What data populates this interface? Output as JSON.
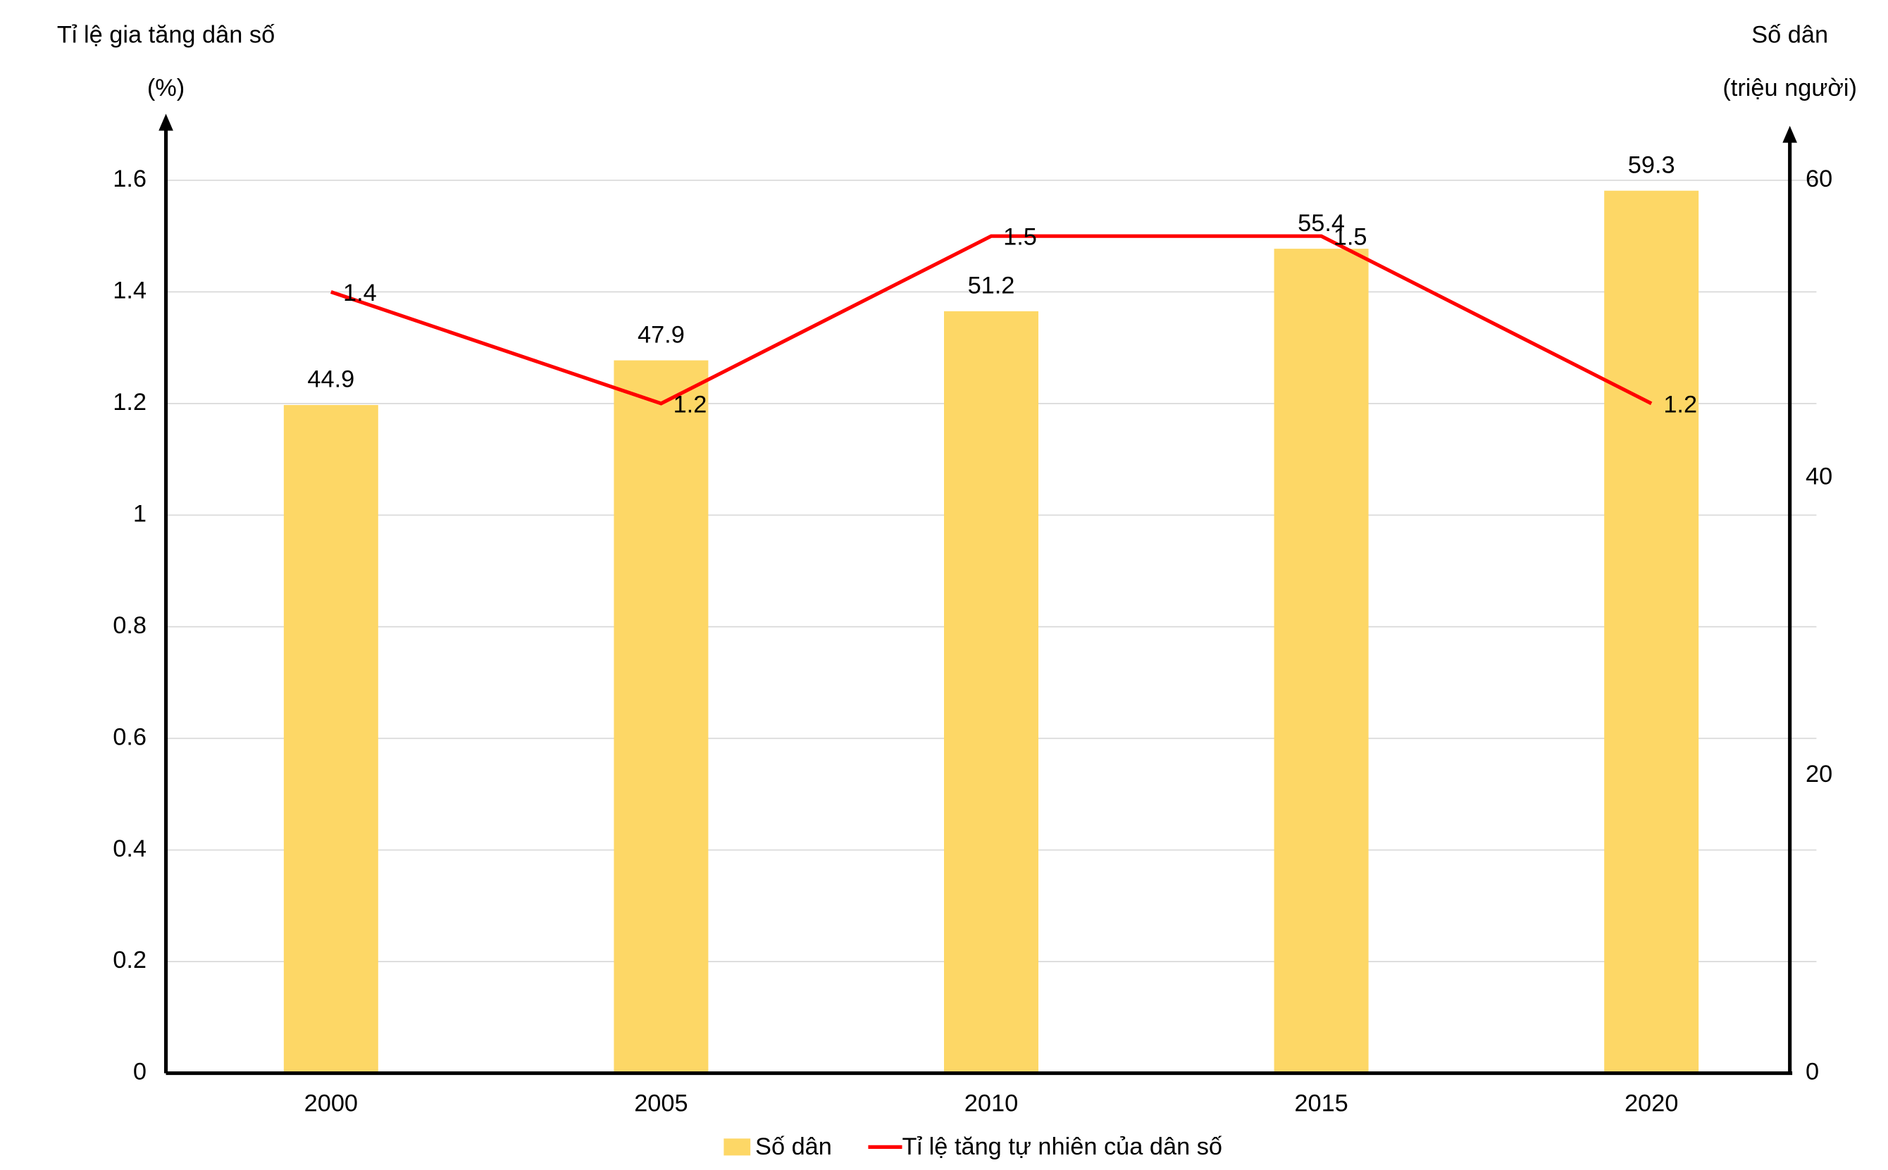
{
  "chart_data": {
    "type": "combo",
    "y_title": "Tỉ lệ gia tăng dân số",
    "y_unit": "(%)",
    "y2_title": "Số dân",
    "y2_unit": "(triệu người)",
    "categories": [
      "2000",
      "2005",
      "2010",
      "2015",
      "2020"
    ],
    "series": [
      {
        "name": "Số dân",
        "type": "bar",
        "axis": "y2",
        "color": "#fdd766",
        "values": [
          44.9,
          47.9,
          51.2,
          55.4,
          59.3
        ]
      },
      {
        "name": "Tỉ lệ tăng tự nhiên của dân số",
        "type": "line",
        "color": "#ff0000",
        "values": [
          1.4,
          1.2,
          1.5,
          1.5,
          1.2
        ]
      }
    ],
    "ylim": [
      0,
      1.6
    ],
    "yticks": [
      0,
      0.2,
      0.4,
      0.6,
      0.8,
      1,
      1.2,
      1.4,
      1.6
    ],
    "y2lim": [
      0,
      60
    ],
    "y2ticks": [
      0,
      20,
      40,
      60
    ],
    "grid": true,
    "legend": "bottom"
  }
}
